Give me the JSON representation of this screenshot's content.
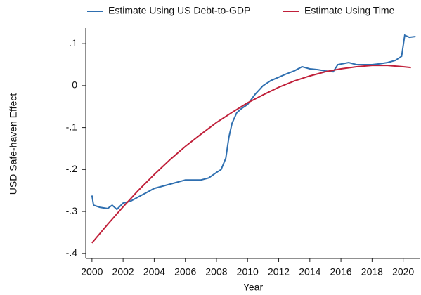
{
  "chart_data": {
    "type": "line",
    "x_label": "Year",
    "y_label": "USD Safe-haven Effect",
    "xlim": [
      1999.6,
      2021.1
    ],
    "xticks": [
      2000,
      2002,
      2004,
      2006,
      2008,
      2010,
      2012,
      2014,
      2016,
      2018,
      2020
    ],
    "ylim": [
      -0.412,
      0.137
    ],
    "yticks": [
      {
        "value": 0.1,
        "label": ".1"
      },
      0,
      {
        "value": -0.1,
        "label": "-.1"
      },
      {
        "value": -0.2,
        "label": "-.2"
      },
      {
        "value": -0.3,
        "label": "-.3"
      },
      {
        "value": -0.4,
        "label": "-.4"
      }
    ],
    "grid": false,
    "legend": "top",
    "series": [
      {
        "name": "Estimate Using US Debt-to-GDP",
        "color": "#2f6fb0",
        "x": [
          2000.0,
          2000.1,
          2000.5,
          2001.0,
          2001.3,
          2001.6,
          2002.0,
          2002.5,
          2003.0,
          2003.5,
          2004.0,
          2004.5,
          2005.0,
          2005.5,
          2006.0,
          2006.5,
          2007.0,
          2007.5,
          2008.0,
          2008.3,
          2008.6,
          2008.8,
          2009.0,
          2009.3,
          2009.6,
          2010.0,
          2010.5,
          2011.0,
          2011.5,
          2012.0,
          2012.5,
          2013.0,
          2013.5,
          2014.0,
          2014.5,
          2015.0,
          2015.5,
          2015.8,
          2016.5,
          2017.0,
          2017.5,
          2018.0,
          2018.5,
          2019.0,
          2019.5,
          2019.9,
          2020.1,
          2020.4,
          2020.8
        ],
        "values": [
          -0.262,
          -0.285,
          -0.29,
          -0.293,
          -0.285,
          -0.295,
          -0.28,
          -0.275,
          -0.265,
          -0.255,
          -0.245,
          -0.24,
          -0.235,
          -0.23,
          -0.225,
          -0.225,
          -0.225,
          -0.22,
          -0.207,
          -0.2,
          -0.173,
          -0.123,
          -0.09,
          -0.065,
          -0.055,
          -0.045,
          -0.02,
          0.0,
          0.012,
          0.02,
          0.028,
          0.035,
          0.045,
          0.04,
          0.038,
          0.035,
          0.033,
          0.05,
          0.055,
          0.05,
          0.05,
          0.05,
          0.052,
          0.055,
          0.06,
          0.07,
          0.12,
          0.115,
          0.117
        ]
      },
      {
        "name": "Estimate Using Time",
        "color": "#c0203a",
        "x": [
          2000,
          2001,
          2002,
          2003,
          2004,
          2005,
          2006,
          2007,
          2008,
          2009,
          2010,
          2011,
          2012,
          2013,
          2014,
          2015,
          2016,
          2017,
          2018,
          2019,
          2020,
          2020.5
        ],
        "values": [
          -0.375,
          -0.331,
          -0.289,
          -0.249,
          -0.212,
          -0.177,
          -0.145,
          -0.116,
          -0.088,
          -0.064,
          -0.041,
          -0.022,
          -0.004,
          0.011,
          0.023,
          0.033,
          0.04,
          0.045,
          0.048,
          0.048,
          0.045,
          0.043
        ]
      }
    ]
  }
}
